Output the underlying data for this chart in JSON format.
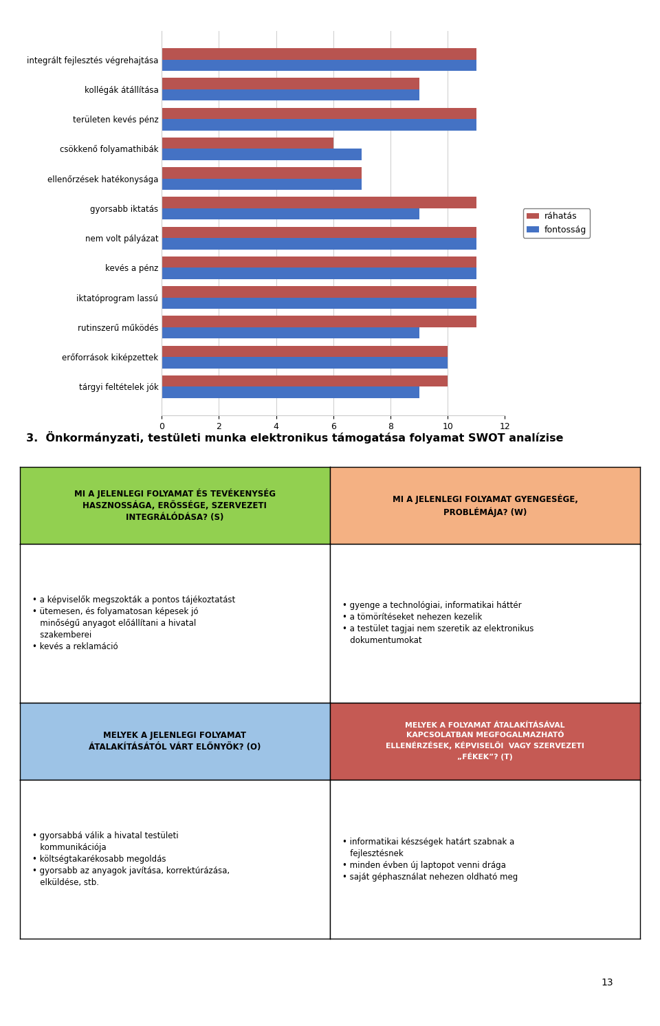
{
  "categories": [
    "tárgyi feltételek jók",
    "erőforrások kiképzettek",
    "rutinszerű működés",
    "iktatóprogram lassú",
    "kevés a pénz",
    "nem volt pályázat",
    "gyorsabb iktatás",
    "ellenőrzések hatékonysága",
    "csökkenő folyamathibák",
    "területen kevés pénz",
    "kollégák átállítása",
    "integrált fejlesztés végrehajtása"
  ],
  "raHatas": [
    10,
    10,
    11,
    11,
    11,
    11,
    11,
    7,
    6,
    11,
    9,
    11
  ],
  "fontossag": [
    9,
    10,
    9,
    11,
    11,
    11,
    9,
    7,
    7,
    11,
    9,
    11
  ],
  "raHatas_color": "#B85450",
  "fontossag_color": "#4472C4",
  "xlim": [
    0,
    12
  ],
  "xticks": [
    0,
    2,
    4,
    6,
    8,
    10,
    12
  ],
  "legend_raHatas": "ráhatás",
  "legend_fontossag": "fontosság",
  "swot_title": "3.  Önkormányzati, testületi munka elektronikus támogatása folyamat SWOT analízise",
  "sw_header_S": "MI A JELENLEGI FOLYAMAT ÉS TEVÉKENYSÉG\nHASZNOSSÁGA, ERŐSSÉGE, SZERVEZETI\nINTEGRÁLÓDÁSA? (S)",
  "sw_header_W": "MI A JELENLEGI FOLYAMAT GYENGESÉGE,\nPROBLÉMÁJA? (W)",
  "sw_header_O": "MELYEK A JELENLEGI FOLYAMAT\nÁTALAKÍTÁSÁTÓL VÁRT ELŐNYÖK? (O)",
  "sw_header_T": "MELYEK A FOLYAMAT ÁTALAKÍTÁSÁVAL\nKAPCSOLATBAN MEGFOGALMAZHATÓ\nELLENÉRZÉSEK, KÉPVISELŐI  VAGY SZERVEZETI\n„FÉKEK”? (T)",
  "sw_body_S": "• a képviselők megszokták a pontos tájékoztatást\n• ütemesen, és folyamatosan képesek jó\n   minőségű anyagot előállítani a hivatal\n   szakemberei\n• kevés a reklamáció",
  "sw_body_W": "• gyenge a technológiai, informatikai háttér\n• a tömörítéseket nehezen kezelik\n• a testület tagjai nem szeretik az elektronikus\n   dokumentumokat",
  "sw_body_O": "• gyorsabbá válik a hivatal testületi\n   kommunikációja\n• költségtakarékosabb megoldás\n• gyorsabb az anyagok javítása, korrektúrázása,\n   elküldése, stb.",
  "sw_body_T": "• informatikai készségek határt szabnak a\n   fejlesztésnek\n• minden évben új laptopot venni drága\n• saját géphasználat nehezen oldható meg",
  "color_S_header": "#92D050",
  "color_W_header": "#F4B183",
  "color_O_header": "#9DC3E6",
  "color_T_header": "#C55A54",
  "color_border": "#000000",
  "page_number": "13",
  "bg_color": "#FFFFFF"
}
